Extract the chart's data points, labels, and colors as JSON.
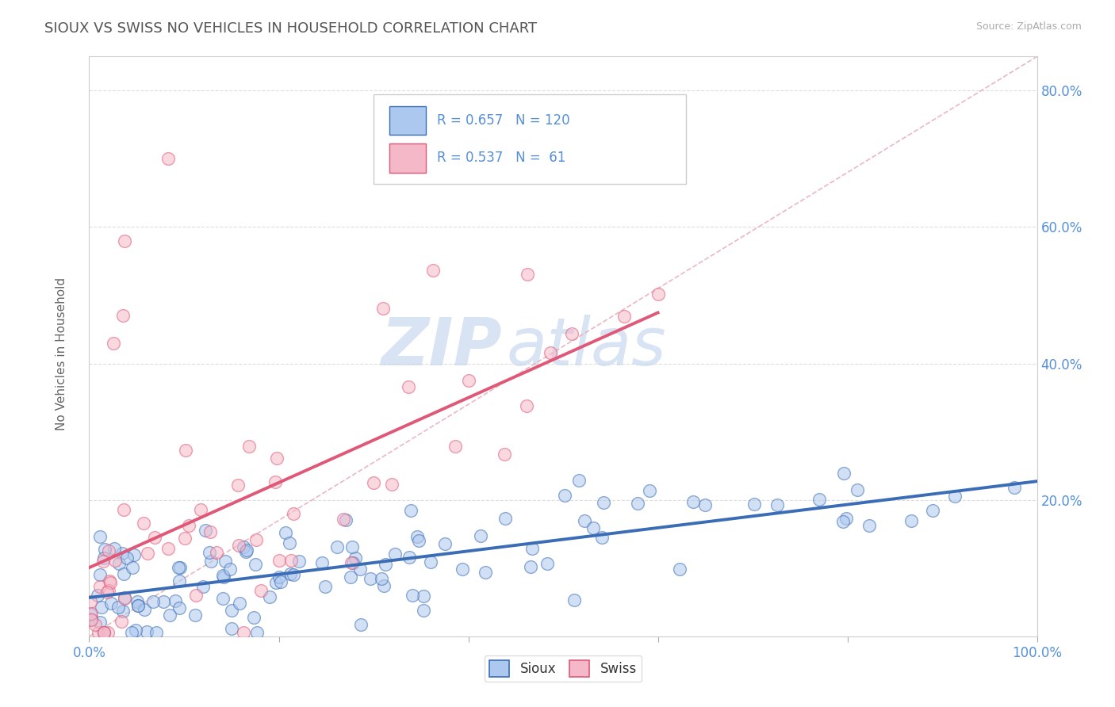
{
  "title": "SIOUX VS SWISS NO VEHICLES IN HOUSEHOLD CORRELATION CHART",
  "source": "Source: ZipAtlas.com",
  "ylabel": "No Vehicles in Household",
  "legend_sioux_label": "Sioux",
  "legend_swiss_label": "Swiss",
  "sioux_R": "0.657",
  "sioux_N": "120",
  "swiss_R": "0.537",
  "swiss_N": "61",
  "sioux_color": "#adc8ee",
  "swiss_color": "#f5b8c8",
  "sioux_line_color": "#3a6db5",
  "swiss_line_color": "#e05878",
  "diag_line_color": "#e8b0bc",
  "watermark_ZIP": "ZIP",
  "watermark_atlas": "atlas",
  "background_color": "#ffffff",
  "title_color": "#555555",
  "axis_label_color": "#5590d9",
  "grid_color": "#dddddd",
  "marker_size": 130,
  "marker_alpha": 0.55,
  "marker_linewidth": 1.0,
  "xlim": [
    0.0,
    1.0
  ],
  "ylim": [
    0.0,
    0.85
  ],
  "ytick_positions": [
    0.2,
    0.4,
    0.6,
    0.8
  ],
  "ytick_labels": [
    "20.0%",
    "40.0%",
    "60.0%",
    "80.0%"
  ],
  "xtick_left_label": "0.0%",
  "xtick_right_label": "100.0%"
}
